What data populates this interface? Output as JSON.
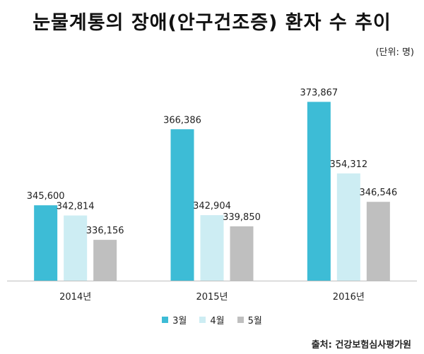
{
  "title": "눈물계통의 장애(안구건조증) 환자 수 추이",
  "unit_label": "(단위: 명)",
  "source_label": "출처: 건강보험심사평가원",
  "colors": {
    "march": "#3dbcd6",
    "april": "#cdedf3",
    "may": "#bfbfbf",
    "axis": "#bfbfbf"
  },
  "chart_data": {
    "type": "bar",
    "title": "눈물계통의 장애(안구건조증) 환자 수 추이",
    "xlabel": "",
    "ylabel": "",
    "categories": [
      "2014년",
      "2015년",
      "2016년"
    ],
    "ylim": [
      325000,
      378000
    ],
    "grid": false,
    "legend_position": "bottom",
    "series": [
      {
        "name": "3월",
        "values": [
          345600,
          366386,
          373867
        ],
        "labels": [
          "345,600",
          "366,386",
          "373,867"
        ]
      },
      {
        "name": "4월",
        "values": [
          342814,
          342904,
          354312
        ],
        "labels": [
          "342,814",
          "342,904",
          "354,312"
        ]
      },
      {
        "name": "5월",
        "values": [
          336156,
          339850,
          346546
        ],
        "labels": [
          "336,156",
          "339,850",
          "346,546"
        ]
      }
    ]
  }
}
